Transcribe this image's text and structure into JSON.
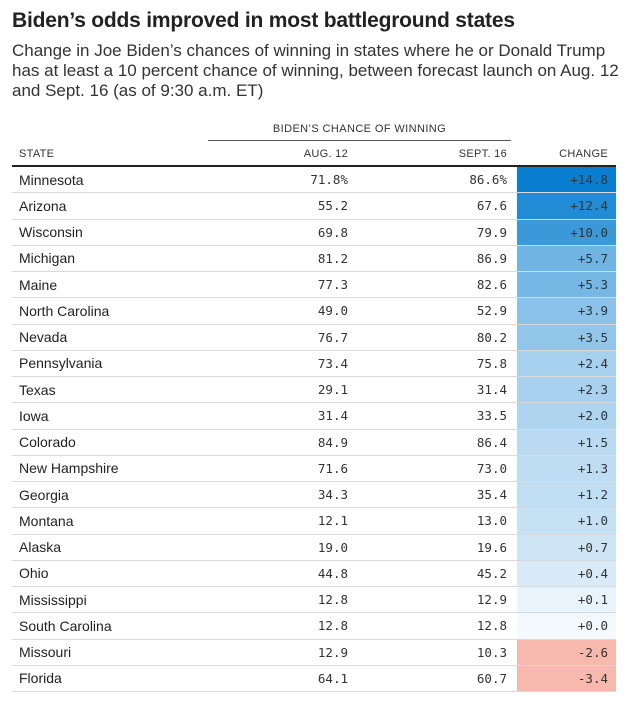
{
  "title": "Biden’s odds improved in most battleground states",
  "subtitle": "Change in Joe Biden’s chances of winning in states where he or Donald Trump has at least a 10 percent chance of winning, between forecast launch on Aug. 12 and Sept. 16 (as of 9:30 a.m. ET)",
  "group_header": "BIDEN’S CHANCE OF WINNING",
  "columns": {
    "state": "STATE",
    "aug": "AUG. 12",
    "sep": "SEPT. 16",
    "change": "CHANGE"
  },
  "colors": {
    "positive_max": "#0a7fd1",
    "positive_min": "#f4f9fd",
    "negative": "#f7b9ae"
  },
  "chart_data": {
    "type": "table",
    "title": "Biden’s odds improved in most battleground states",
    "columns": [
      "STATE",
      "AUG. 12",
      "SEPT. 16",
      "CHANGE"
    ],
    "rows": [
      {
        "state": "Minnesota",
        "aug": "71.8%",
        "sep": "86.6%",
        "change": "+14.8",
        "value": 14.8
      },
      {
        "state": "Arizona",
        "aug": "55.2",
        "sep": "67.6",
        "change": "+12.4",
        "value": 12.4
      },
      {
        "state": "Wisconsin",
        "aug": "69.8",
        "sep": "79.9",
        "change": "+10.0",
        "value": 10.0
      },
      {
        "state": "Michigan",
        "aug": "81.2",
        "sep": "86.9",
        "change": "+5.7",
        "value": 5.7
      },
      {
        "state": "Maine",
        "aug": "77.3",
        "sep": "82.6",
        "change": "+5.3",
        "value": 5.3
      },
      {
        "state": "North Carolina",
        "aug": "49.0",
        "sep": "52.9",
        "change": "+3.9",
        "value": 3.9
      },
      {
        "state": "Nevada",
        "aug": "76.7",
        "sep": "80.2",
        "change": "+3.5",
        "value": 3.5
      },
      {
        "state": "Pennsylvania",
        "aug": "73.4",
        "sep": "75.8",
        "change": "+2.4",
        "value": 2.4
      },
      {
        "state": "Texas",
        "aug": "29.1",
        "sep": "31.4",
        "change": "+2.3",
        "value": 2.3
      },
      {
        "state": "Iowa",
        "aug": "31.4",
        "sep": "33.5",
        "change": "+2.0",
        "value": 2.0
      },
      {
        "state": "Colorado",
        "aug": "84.9",
        "sep": "86.4",
        "change": "+1.5",
        "value": 1.5
      },
      {
        "state": "New Hampshire",
        "aug": "71.6",
        "sep": "73.0",
        "change": "+1.3",
        "value": 1.3
      },
      {
        "state": "Georgia",
        "aug": "34.3",
        "sep": "35.4",
        "change": "+1.2",
        "value": 1.2
      },
      {
        "state": "Montana",
        "aug": "12.1",
        "sep": "13.0",
        "change": "+1.0",
        "value": 1.0
      },
      {
        "state": "Alaska",
        "aug": "19.0",
        "sep": "19.6",
        "change": "+0.7",
        "value": 0.7
      },
      {
        "state": "Ohio",
        "aug": "44.8",
        "sep": "45.2",
        "change": "+0.4",
        "value": 0.4
      },
      {
        "state": "Mississippi",
        "aug": "12.8",
        "sep": "12.9",
        "change": "+0.1",
        "value": 0.1
      },
      {
        "state": "South Carolina",
        "aug": "12.8",
        "sep": "12.8",
        "change": "+0.0",
        "value": 0.0
      },
      {
        "state": "Missouri",
        "aug": "12.9",
        "sep": "10.3",
        "change": "-2.6",
        "value": -2.6
      },
      {
        "state": "Florida",
        "aug": "64.1",
        "sep": "60.7",
        "change": "-3.4",
        "value": -3.4
      }
    ]
  }
}
